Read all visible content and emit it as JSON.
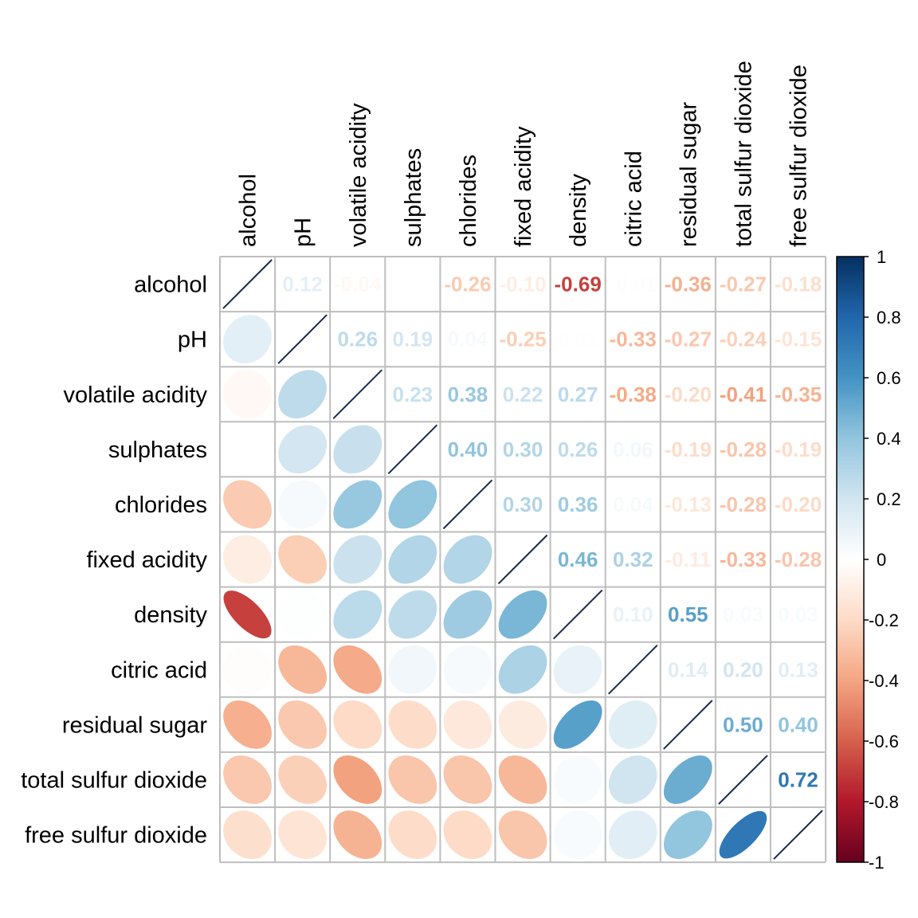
{
  "chart_data": {
    "type": "heatmap",
    "title": "",
    "variables": [
      "alcohol",
      "pH",
      "volatile acidity",
      "sulphates",
      "chlorides",
      "fixed acidity",
      "density",
      "citric acid",
      "residual sugar",
      "total sulfur dioxide",
      "free sulfur dioxide"
    ],
    "matrix": [
      [
        1,
        0.12,
        -0.04,
        0.0,
        -0.26,
        -0.1,
        -0.69,
        -0.01,
        -0.36,
        -0.27,
        -0.18
      ],
      [
        0.12,
        1,
        0.26,
        0.19,
        0.04,
        -0.25,
        0.01,
        -0.33,
        -0.27,
        -0.24,
        -0.15
      ],
      [
        -0.04,
        0.26,
        1,
        0.23,
        0.38,
        0.22,
        0.27,
        -0.38,
        -0.2,
        -0.41,
        -0.35
      ],
      [
        0.0,
        0.19,
        0.23,
        1,
        0.4,
        0.3,
        0.26,
        0.06,
        -0.19,
        -0.28,
        -0.19
      ],
      [
        -0.26,
        0.04,
        0.38,
        0.4,
        1,
        0.3,
        0.36,
        0.04,
        -0.13,
        -0.28,
        -0.2
      ],
      [
        -0.1,
        -0.25,
        0.22,
        0.3,
        0.3,
        1,
        0.46,
        0.32,
        -0.11,
        -0.33,
        -0.28
      ],
      [
        -0.69,
        0.01,
        0.27,
        0.26,
        0.36,
        0.46,
        1,
        0.1,
        0.55,
        0.03,
        0.03
      ],
      [
        -0.01,
        -0.33,
        -0.38,
        0.06,
        0.04,
        0.32,
        0.1,
        1,
        0.14,
        0.2,
        0.13
      ],
      [
        -0.36,
        -0.27,
        -0.2,
        -0.19,
        -0.13,
        -0.11,
        0.55,
        0.14,
        1,
        0.5,
        0.4
      ],
      [
        -0.27,
        -0.24,
        -0.41,
        -0.28,
        -0.28,
        -0.33,
        0.03,
        0.2,
        0.5,
        1,
        0.72
      ],
      [
        -0.18,
        -0.15,
        -0.35,
        -0.19,
        -0.2,
        -0.28,
        0.03,
        0.13,
        0.4,
        0.72,
        1
      ]
    ],
    "upper_display": "numbers",
    "lower_display": "ellipses",
    "diagonal_display": "line",
    "number_format": "0.00",
    "colorbar": {
      "range": [
        -1,
        1
      ],
      "ticks": [
        "1",
        "0.8",
        "0.6",
        "0.4",
        "0.2",
        "0",
        "-0.2",
        "-0.4",
        "-0.6",
        "-0.8",
        "-1"
      ],
      "placement": "right"
    },
    "palette": [
      "#67001F",
      "#B2182B",
      "#D6604D",
      "#F4A582",
      "#FDDBC7",
      "#FFFFFF",
      "#D1E5F0",
      "#92C5DE",
      "#4393C3",
      "#2166AC",
      "#053061"
    ],
    "grid_color": "#bebebe"
  }
}
